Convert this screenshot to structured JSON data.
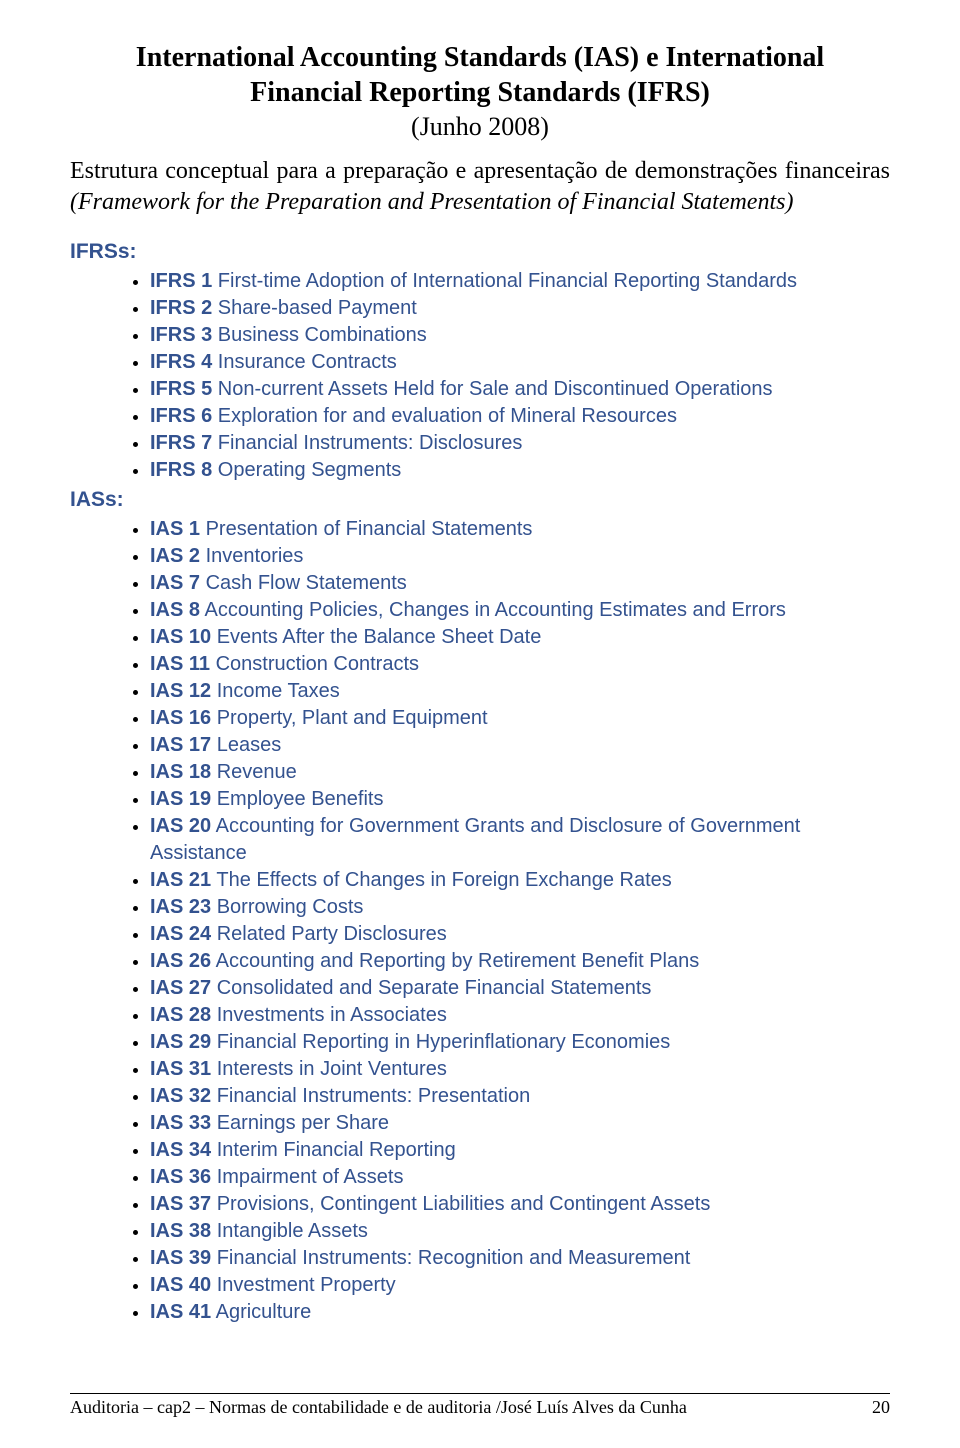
{
  "title_line1": "International Accounting Standards (IAS) e International",
  "title_line2": "Financial Reporting Standards (IFRS)",
  "subtitle": "(Junho 2008)",
  "intro_html": "Estrutura conceptual para a preparação e apresentação de demonstrações financeiras <i>(Framework for the Preparation and Presentation of Financial Statements)</i>",
  "section_ifrs": "IFRSs:",
  "section_ias": "IASs:",
  "ifrs": [
    {
      "code": "IFRS 1",
      "desc": "First-time Adoption of International Financial Reporting Standards"
    },
    {
      "code": "IFRS 2",
      "desc": "Share-based Payment"
    },
    {
      "code": "IFRS 3",
      "desc": "Business Combinations"
    },
    {
      "code": "IFRS 4",
      "desc": "Insurance Contracts"
    },
    {
      "code": "IFRS 5",
      "desc": "Non-current Assets Held for Sale and Discontinued Operations"
    },
    {
      "code": "IFRS 6",
      "desc": "Exploration for and evaluation of Mineral Resources"
    },
    {
      "code": "IFRS 7",
      "desc": "Financial Instruments: Disclosures"
    },
    {
      "code": "IFRS 8",
      "desc": "Operating Segments"
    }
  ],
  "ias": [
    {
      "code": "IAS 1",
      "desc": "Presentation of Financial Statements"
    },
    {
      "code": "IAS 2",
      "desc": "Inventories"
    },
    {
      "code": "IAS 7",
      "desc": "Cash Flow Statements"
    },
    {
      "code": "IAS 8",
      "desc": "Accounting Policies, Changes in Accounting Estimates and Errors"
    },
    {
      "code": "IAS 10",
      "desc": "Events After the Balance Sheet Date"
    },
    {
      "code": "IAS 11",
      "desc": "Construction Contracts"
    },
    {
      "code": "IAS 12",
      "desc": "Income Taxes"
    },
    {
      "code": "IAS 16",
      "desc": "Property, Plant and Equipment"
    },
    {
      "code": "IAS 17",
      "desc": "Leases"
    },
    {
      "code": "IAS 18",
      "desc": "Revenue"
    },
    {
      "code": "IAS 19",
      "desc": "Employee Benefits"
    },
    {
      "code": "IAS 20",
      "desc": "Accounting for Government Grants and Disclosure of Government Assistance"
    },
    {
      "code": "IAS 21",
      "desc": "The Effects of Changes in Foreign Exchange Rates"
    },
    {
      "code": "IAS 23",
      "desc": "Borrowing Costs"
    },
    {
      "code": "IAS 24",
      "desc": "Related Party Disclosures"
    },
    {
      "code": "IAS 26",
      "desc": "Accounting and Reporting by Retirement Benefit Plans"
    },
    {
      "code": "IAS 27",
      "desc": "Consolidated and Separate Financial Statements"
    },
    {
      "code": "IAS 28",
      "desc": "Investments in Associates"
    },
    {
      "code": "IAS 29",
      "desc": "Financial Reporting in Hyperinflationary Economies"
    },
    {
      "code": "IAS 31",
      "desc": "Interests in Joint Ventures"
    },
    {
      "code": "IAS 32",
      "desc": "Financial Instruments: Presentation"
    },
    {
      "code": "IAS 33",
      "desc": "Earnings per Share"
    },
    {
      "code": "IAS 34",
      "desc": "Interim Financial Reporting"
    },
    {
      "code": "IAS 36",
      "desc": "Impairment of Assets"
    },
    {
      "code": "IAS 37",
      "desc": "Provisions, Contingent Liabilities and Contingent Assets"
    },
    {
      "code": "IAS 38",
      "desc": "Intangible Assets"
    },
    {
      "code": "IAS 39",
      "desc": "Financial Instruments: Recognition and Measurement"
    },
    {
      "code": "IAS 40",
      "desc": "Investment Property"
    },
    {
      "code": "IAS 41",
      "desc": "Agriculture"
    }
  ],
  "footer_text": "Auditoria – cap2 – Normas de contabilidade e de auditoria /José Luís Alves da Cunha",
  "page_number": "20",
  "colors": {
    "link": "#33528f",
    "text": "#000",
    "bg": "#fff"
  },
  "fonts": {
    "title": "Times New Roman",
    "body": "Arial"
  }
}
